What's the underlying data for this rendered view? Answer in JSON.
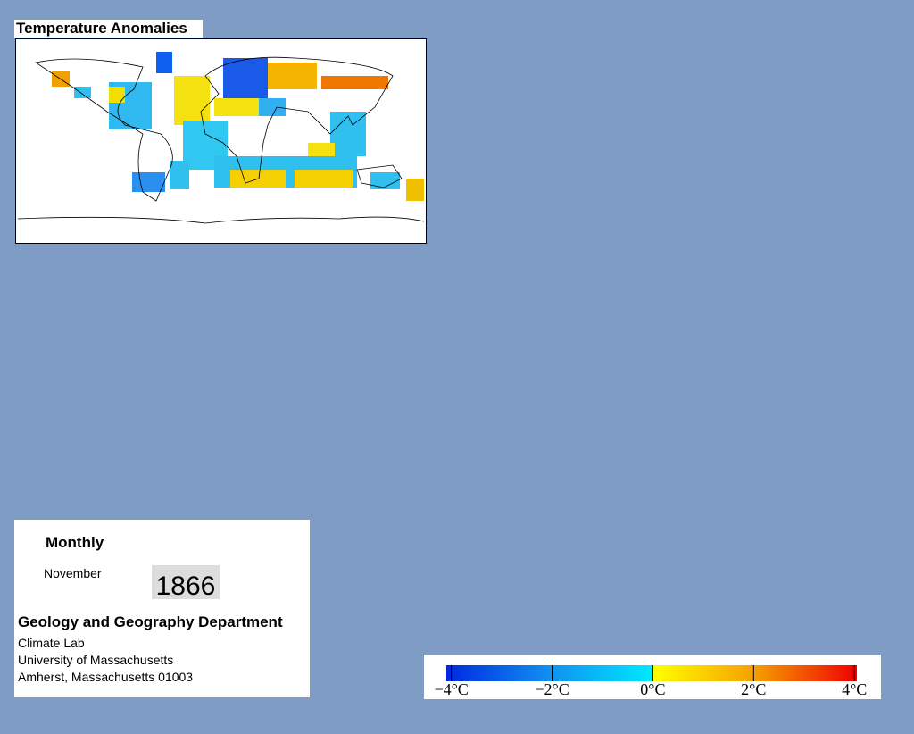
{
  "title": "Temperature Anomalies",
  "info": {
    "frequency": "Monthly",
    "month": "November",
    "year": "1866",
    "department": "Geology and Geography Department",
    "lines": [
      "Climate Lab",
      "University of Massachusetts",
      "Amherst, Massachusetts 01003"
    ]
  },
  "colorbar": {
    "lim": [
      -4.1,
      4.05
    ],
    "ticks": [
      {
        "value": -4,
        "label": "−4°C"
      },
      {
        "value": -2,
        "label": "−2°C"
      },
      {
        "value": 0,
        "label": "0°C"
      },
      {
        "value": 2,
        "label": "2°C"
      },
      {
        "value": 4,
        "label": "4°C"
      }
    ]
  }
}
